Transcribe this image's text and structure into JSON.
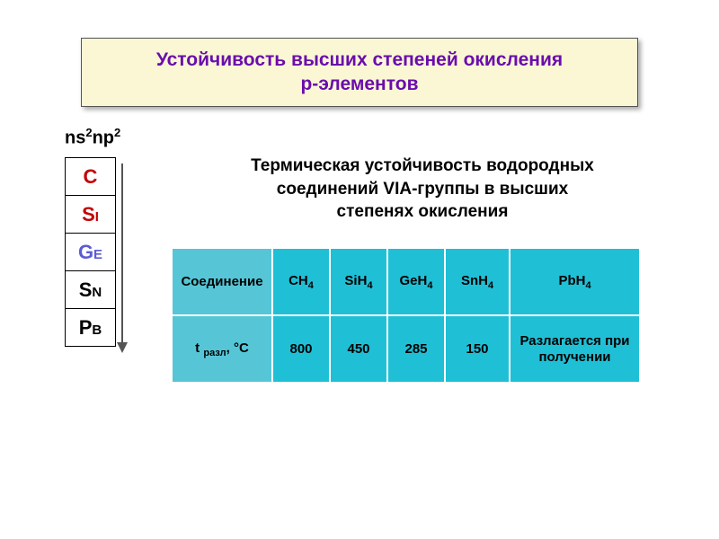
{
  "title": {
    "line1": "Устойчивость высших степеней окисления",
    "line2": "р-элементов",
    "bg": "#fbf7d5",
    "border": "#555555",
    "text_color": "#6a0dad",
    "fontsize": 21
  },
  "electron_config": {
    "text": "ns",
    "sup1": "2",
    "text2": "np",
    "sup2": "2"
  },
  "elements_column": [
    {
      "symbol": "C",
      "color": "#c40000"
    },
    {
      "symbol": "Si",
      "color": "#c40000"
    },
    {
      "symbol": "Ge",
      "color": "#5b5bd6"
    },
    {
      "symbol": "Sn",
      "color": "#000000"
    },
    {
      "symbol": "Pb",
      "color": "#000000"
    }
  ],
  "subtitle": {
    "line1": "Термическая устойчивость водородных",
    "line2": "соединений VIА-группы в высших",
    "line3": "степенях окисления"
  },
  "table": {
    "bg_colors": [
      "#56c6d6",
      "#1fc0d6"
    ],
    "row1_label": "Соединение",
    "row2_label_html": "t <sub>разл</sub>, °С",
    "row2_label_pre": "t ",
    "row2_label_sub": "разл",
    "row2_label_post": ", °С",
    "compounds": [
      {
        "base": "CH",
        "sub": "4"
      },
      {
        "base": "SiH",
        "sub": "4"
      },
      {
        "base": "GeH",
        "sub": "4"
      },
      {
        "base": "SnH",
        "sub": "4"
      },
      {
        "base": "PbH",
        "sub": "4"
      }
    ],
    "temps": [
      "800",
      "450",
      "285",
      "150",
      "Разлагается при получении"
    ]
  }
}
